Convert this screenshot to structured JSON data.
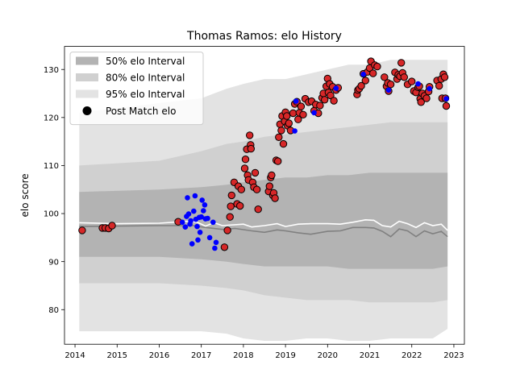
{
  "chart_data": {
    "type": "line",
    "title": "Thomas Ramos: elo History",
    "xlabel": "",
    "ylabel": "elo score",
    "xlim": [
      2013.75,
      2023.25
    ],
    "ylim": [
      72.8,
      134.8
    ],
    "xticks": [
      2014,
      2015,
      2016,
      2017,
      2018,
      2019,
      2020,
      2021,
      2022,
      2023
    ],
    "xtick_labels": [
      "2014",
      "2015",
      "2016",
      "2017",
      "2018",
      "2019",
      "2020",
      "2021",
      "2022",
      "2023"
    ],
    "yticks": [
      80,
      90,
      100,
      110,
      120,
      130
    ],
    "ytick_labels": [
      "80",
      "90",
      "100",
      "110",
      "120",
      "130"
    ],
    "grid": false,
    "legend": {
      "placement": "top-left",
      "entries": [
        "50% elo Interval",
        "80% elo Interval",
        "95% elo Interval",
        "Post Match elo"
      ]
    },
    "colors": {
      "band95": "#e3e3e3",
      "band80": "#d0d0d0",
      "band50": "#b3b3b3",
      "median_line": "#808080",
      "mean_line": "#ffffff",
      "point_red": "#d62728",
      "point_blue": "#0000ff",
      "point_edge": "#000000"
    },
    "bands": {
      "x": [
        2014.1,
        2016.0,
        2017.0,
        2017.6,
        2018.0,
        2018.5,
        2019.0,
        2019.5,
        2020.0,
        2020.5,
        2021.0,
        2021.5,
        2022.0,
        2022.5,
        2022.85
      ],
      "p95_low": [
        75.5,
        75.5,
        75.5,
        75,
        74,
        73.5,
        73.5,
        74,
        74,
        73.5,
        73.5,
        74,
        74,
        74,
        76
      ],
      "p95_high": [
        121,
        123,
        124,
        126,
        127,
        128,
        128,
        129,
        130,
        131,
        131,
        132,
        132,
        132,
        132
      ],
      "p80_low": [
        85.5,
        85.5,
        85,
        84.5,
        84,
        83,
        82.5,
        82,
        82,
        82,
        81.5,
        81.5,
        81.5,
        81.5,
        82
      ],
      "p80_high": [
        110,
        111,
        113,
        114.5,
        115,
        116,
        116.5,
        117,
        117.5,
        118,
        118.5,
        119,
        119,
        119,
        119
      ],
      "p50_low": [
        91,
        91,
        90.5,
        90,
        89.5,
        89,
        89,
        89,
        89,
        88.5,
        88.5,
        88.5,
        88.5,
        88.5,
        89
      ],
      "p50_high": [
        104.5,
        105,
        105.5,
        106,
        106.5,
        107,
        107.5,
        107.5,
        108,
        108,
        108.5,
        108.5,
        108.5,
        108.5,
        108.5
      ]
    },
    "series": [
      {
        "values": [
          [
            2014.1,
            97.3
          ],
          [
            2015.0,
            97.4
          ],
          [
            2016.0,
            97.5
          ],
          [
            2016.8,
            97.5
          ],
          [
            2017.1,
            97.1
          ],
          [
            2017.5,
            96.7
          ],
          [
            2017.8,
            96.9
          ],
          [
            2018.2,
            96.4
          ],
          [
            2018.5,
            96.1
          ],
          [
            2018.8,
            96.6
          ],
          [
            2019.0,
            96.4
          ],
          [
            2019.3,
            96.0
          ],
          [
            2019.6,
            95.7
          ],
          [
            2020.0,
            96.3
          ],
          [
            2020.3,
            96.4
          ],
          [
            2020.6,
            97.1
          ],
          [
            2020.9,
            97.1
          ],
          [
            2021.1,
            97.0
          ],
          [
            2021.3,
            96.3
          ],
          [
            2021.5,
            95.2
          ],
          [
            2021.7,
            96.8
          ],
          [
            2021.9,
            96.4
          ],
          [
            2022.1,
            95.2
          ],
          [
            2022.3,
            96.4
          ],
          [
            2022.5,
            95.8
          ],
          [
            2022.7,
            96.3
          ],
          [
            2022.85,
            95.2
          ]
        ]
      },
      {
        "values": [
          [
            2014.1,
            98.1
          ],
          [
            2015.0,
            97.9
          ],
          [
            2016.0,
            98.0
          ],
          [
            2016.7,
            98.4
          ],
          [
            2016.9,
            98.2
          ],
          [
            2017.1,
            97.4
          ],
          [
            2017.3,
            98.1
          ],
          [
            2017.5,
            97.5
          ],
          [
            2018.0,
            97.8
          ],
          [
            2018.2,
            97.2
          ],
          [
            2018.5,
            97.5
          ],
          [
            2018.8,
            97.9
          ],
          [
            2019.0,
            97.3
          ],
          [
            2019.3,
            97.8
          ],
          [
            2019.6,
            97.9
          ],
          [
            2020.0,
            97.9
          ],
          [
            2020.3,
            97.8
          ],
          [
            2020.6,
            98.2
          ],
          [
            2020.9,
            98.7
          ],
          [
            2021.1,
            98.6
          ],
          [
            2021.3,
            97.5
          ],
          [
            2021.5,
            97.2
          ],
          [
            2021.7,
            98.4
          ],
          [
            2021.9,
            97.9
          ],
          [
            2022.1,
            97.1
          ],
          [
            2022.3,
            98.1
          ],
          [
            2022.5,
            97.5
          ],
          [
            2022.7,
            97.8
          ],
          [
            2022.85,
            96.5
          ]
        ]
      }
    ],
    "points_red": [
      [
        2014.17,
        96.5
      ],
      [
        2014.65,
        97.0
      ],
      [
        2014.72,
        97.0
      ],
      [
        2014.8,
        96.9
      ],
      [
        2014.88,
        97.5
      ],
      [
        2016.45,
        98.3
      ],
      [
        2017.55,
        93.0
      ],
      [
        2017.62,
        96.5
      ],
      [
        2017.68,
        99.3
      ],
      [
        2017.7,
        101.5
      ],
      [
        2017.72,
        103.8
      ],
      [
        2017.78,
        106.5
      ],
      [
        2017.85,
        102.0
      ],
      [
        2017.88,
        105.7
      ],
      [
        2017.92,
        101.6
      ],
      [
        2017.95,
        105.0
      ],
      [
        2018.03,
        109.4
      ],
      [
        2018.05,
        111.3
      ],
      [
        2018.08,
        113.4
      ],
      [
        2018.1,
        108.0
      ],
      [
        2018.12,
        107.0
      ],
      [
        2018.15,
        116.3
      ],
      [
        2018.17,
        114.3
      ],
      [
        2018.18,
        113.5
      ],
      [
        2018.22,
        106.5
      ],
      [
        2018.25,
        105.5
      ],
      [
        2018.28,
        108.5
      ],
      [
        2018.32,
        105.0
      ],
      [
        2018.35,
        100.9
      ],
      [
        2018.6,
        104.6
      ],
      [
        2018.62,
        105.7
      ],
      [
        2018.65,
        107.5
      ],
      [
        2018.67,
        108.0
      ],
      [
        2018.7,
        103.8
      ],
      [
        2018.72,
        104.3
      ],
      [
        2018.75,
        103.2
      ],
      [
        2018.78,
        111.1
      ],
      [
        2018.82,
        110.9
      ],
      [
        2018.84,
        115.9
      ],
      [
        2018.87,
        118.6
      ],
      [
        2018.9,
        117.3
      ],
      [
        2018.92,
        120.3
      ],
      [
        2018.95,
        114.5
      ],
      [
        2018.98,
        119.2
      ],
      [
        2019.0,
        121.1
      ],
      [
        2019.03,
        120.3
      ],
      [
        2019.05,
        118.3
      ],
      [
        2019.08,
        118.8
      ],
      [
        2019.12,
        117.3
      ],
      [
        2019.18,
        120.9
      ],
      [
        2019.22,
        122.8
      ],
      [
        2019.27,
        123.3
      ],
      [
        2019.3,
        119.6
      ],
      [
        2019.33,
        121.0
      ],
      [
        2019.37,
        122.3
      ],
      [
        2019.42,
        120.6
      ],
      [
        2019.47,
        123.9
      ],
      [
        2019.55,
        123.2
      ],
      [
        2019.62,
        123.4
      ],
      [
        2019.68,
        121.4
      ],
      [
        2019.72,
        122.7
      ],
      [
        2019.78,
        120.9
      ],
      [
        2019.82,
        122.5
      ],
      [
        2019.87,
        124.1
      ],
      [
        2019.9,
        125.0
      ],
      [
        2019.93,
        123.7
      ],
      [
        2019.97,
        126.5
      ],
      [
        2020.0,
        128.1
      ],
      [
        2020.02,
        125.2
      ],
      [
        2020.05,
        127.0
      ],
      [
        2020.07,
        124.6
      ],
      [
        2020.12,
        126.4
      ],
      [
        2020.15,
        123.5
      ],
      [
        2020.2,
        125.7
      ],
      [
        2020.25,
        126.2
      ],
      [
        2020.7,
        124.8
      ],
      [
        2020.72,
        125.7
      ],
      [
        2020.75,
        126.0
      ],
      [
        2020.8,
        126.6
      ],
      [
        2020.85,
        129.1
      ],
      [
        2020.9,
        127.7
      ],
      [
        2020.95,
        129.5
      ],
      [
        2021.0,
        130.3
      ],
      [
        2021.03,
        131.7
      ],
      [
        2021.08,
        129.2
      ],
      [
        2021.12,
        130.9
      ],
      [
        2021.18,
        130.6
      ],
      [
        2021.35,
        128.4
      ],
      [
        2021.4,
        126.5
      ],
      [
        2021.43,
        127.2
      ],
      [
        2021.45,
        125.5
      ],
      [
        2021.5,
        126.9
      ],
      [
        2021.6,
        129.4
      ],
      [
        2021.65,
        128.0
      ],
      [
        2021.68,
        128.9
      ],
      [
        2021.72,
        128.6
      ],
      [
        2021.75,
        131.4
      ],
      [
        2021.78,
        129.3
      ],
      [
        2021.82,
        128.4
      ],
      [
        2021.9,
        126.9
      ],
      [
        2022.0,
        127.5
      ],
      [
        2022.05,
        125.5
      ],
      [
        2022.1,
        125.2
      ],
      [
        2022.15,
        126.3
      ],
      [
        2022.18,
        126.5
      ],
      [
        2022.2,
        123.9
      ],
      [
        2022.22,
        123.2
      ],
      [
        2022.25,
        125.0
      ],
      [
        2022.3,
        124.5
      ],
      [
        2022.35,
        124.0
      ],
      [
        2022.4,
        125.4
      ],
      [
        2022.42,
        126.4
      ],
      [
        2022.6,
        127.7
      ],
      [
        2022.65,
        126.6
      ],
      [
        2022.7,
        128.0
      ],
      [
        2022.72,
        124.0
      ],
      [
        2022.75,
        129.0
      ],
      [
        2022.78,
        128.4
      ],
      [
        2022.8,
        124.0
      ],
      [
        2022.82,
        122.4
      ]
    ],
    "points_blue": [
      [
        2016.55,
        98.2
      ],
      [
        2016.62,
        97.2
      ],
      [
        2016.65,
        99.4
      ],
      [
        2016.67,
        103.3
      ],
      [
        2016.7,
        99.9
      ],
      [
        2016.73,
        97.8
      ],
      [
        2016.75,
        98.5
      ],
      [
        2016.78,
        93.7
      ],
      [
        2016.82,
        100.5
      ],
      [
        2016.85,
        103.7
      ],
      [
        2016.87,
        98.8
      ],
      [
        2016.9,
        97.3
      ],
      [
        2016.92,
        94.5
      ],
      [
        2016.95,
        99.2
      ],
      [
        2016.97,
        96.1
      ],
      [
        2017.0,
        99.3
      ],
      [
        2017.02,
        102.8
      ],
      [
        2017.05,
        100.6
      ],
      [
        2017.08,
        101.8
      ],
      [
        2017.1,
        98.9
      ],
      [
        2017.15,
        99.0
      ],
      [
        2017.2,
        95.0
      ],
      [
        2017.28,
        98.2
      ],
      [
        2017.32,
        92.8
      ],
      [
        2017.35,
        94.0
      ],
      [
        2019.22,
        117.2
      ],
      [
        2019.25,
        123.4
      ],
      [
        2019.68,
        121.0
      ],
      [
        2020.2,
        126.1
      ],
      [
        2020.85,
        129.0
      ],
      [
        2021.45,
        125.7
      ],
      [
        2022.15,
        127.0
      ],
      [
        2022.42,
        126.0
      ],
      [
        2022.82,
        123.9
      ]
    ]
  }
}
